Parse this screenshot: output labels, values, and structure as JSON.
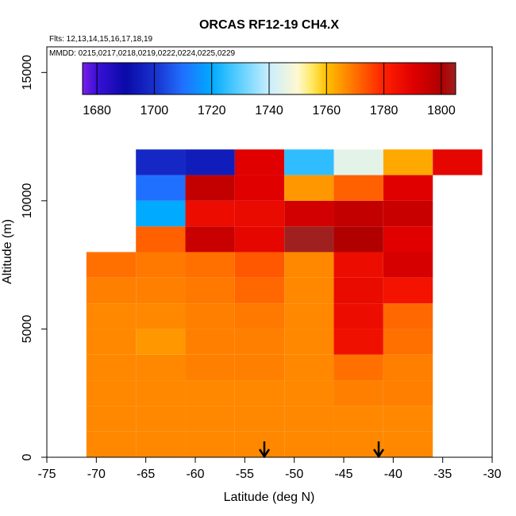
{
  "chart_data": {
    "type": "heatmap",
    "title": "ORCAS RF12-19 CH4.X",
    "xlabel": "Latitude (deg N)",
    "ylabel": "Altitude (m)",
    "xlim": [
      -75,
      -30
    ],
    "ylim": [
      0,
      16000
    ],
    "xticks": [
      -75,
      -70,
      -65,
      -60,
      -55,
      -50,
      -45,
      -40,
      -35,
      -30
    ],
    "yticks": [
      0,
      5000,
      10000,
      15000
    ],
    "note_flights": "Flts: 12,13,14,15,16,17,18,19",
    "note_dates": "MMDD: 0215,0217,0218,0219,0222,0224,0225,0229",
    "colorbar": {
      "min": 1675,
      "max": 1805,
      "ticks": [
        1680,
        1700,
        1720,
        1740,
        1760,
        1780,
        1800
      ],
      "stops": [
        {
          "v": 1675,
          "color": "#7a1fe6"
        },
        {
          "v": 1680,
          "color": "#3a10d8"
        },
        {
          "v": 1690,
          "color": "#0a0aa8"
        },
        {
          "v": 1700,
          "color": "#1830cc"
        },
        {
          "v": 1710,
          "color": "#2070ff"
        },
        {
          "v": 1720,
          "color": "#00aaff"
        },
        {
          "v": 1730,
          "color": "#60d0ff"
        },
        {
          "v": 1740,
          "color": "#c8eeff"
        },
        {
          "v": 1750,
          "color": "#fff8d0"
        },
        {
          "v": 1755,
          "color": "#ffe860"
        },
        {
          "v": 1760,
          "color": "#ffc000"
        },
        {
          "v": 1770,
          "color": "#ff7000"
        },
        {
          "v": 1780,
          "color": "#ff2000"
        },
        {
          "v": 1790,
          "color": "#e00000"
        },
        {
          "v": 1800,
          "color": "#b00000"
        },
        {
          "v": 1805,
          "color": "#a02020"
        }
      ]
    },
    "bin_width_deg": 5,
    "bin_height_m": 1000,
    "columns": [
      {
        "lat_min": -71,
        "cells": [
          [
            0,
            1000,
            1767
          ],
          [
            1000,
            2000,
            1767
          ],
          [
            2000,
            3000,
            1767
          ],
          [
            3000,
            4000,
            1767
          ],
          [
            4000,
            5000,
            1767
          ],
          [
            5000,
            6000,
            1767
          ],
          [
            6000,
            7000,
            1768
          ],
          [
            7000,
            8000,
            1770
          ]
        ]
      },
      {
        "lat_min": -66,
        "cells": [
          [
            0,
            1000,
            1767
          ],
          [
            1000,
            2000,
            1767
          ],
          [
            2000,
            3000,
            1767
          ],
          [
            3000,
            4000,
            1767
          ],
          [
            4000,
            5000,
            1765
          ],
          [
            5000,
            6000,
            1767
          ],
          [
            6000,
            7000,
            1768
          ],
          [
            7000,
            8000,
            1769
          ],
          [
            8000,
            9000,
            1772
          ],
          [
            9000,
            10000,
            1720
          ],
          [
            10000,
            11000,
            1710
          ],
          [
            11000,
            12000,
            1698
          ]
        ]
      },
      {
        "lat_min": -61,
        "cells": [
          [
            0,
            1000,
            1767
          ],
          [
            1000,
            2000,
            1767
          ],
          [
            2000,
            3000,
            1767
          ],
          [
            3000,
            4000,
            1768
          ],
          [
            4000,
            5000,
            1768
          ],
          [
            5000,
            6000,
            1768
          ],
          [
            6000,
            7000,
            1769
          ],
          [
            7000,
            8000,
            1770
          ],
          [
            8000,
            9000,
            1795
          ],
          [
            9000,
            10000,
            1786
          ],
          [
            10000,
            11000,
            1796
          ],
          [
            11000,
            12000,
            1695
          ]
        ]
      },
      {
        "lat_min": -56,
        "cells": [
          [
            0,
            1000,
            1767
          ],
          [
            1000,
            2000,
            1767
          ],
          [
            2000,
            3000,
            1767
          ],
          [
            3000,
            4000,
            1768
          ],
          [
            4000,
            5000,
            1768
          ],
          [
            5000,
            6000,
            1769
          ],
          [
            6000,
            7000,
            1771
          ],
          [
            7000,
            8000,
            1773
          ],
          [
            8000,
            9000,
            1788
          ],
          [
            9000,
            10000,
            1787
          ],
          [
            10000,
            11000,
            1790
          ],
          [
            11000,
            12000,
            1790
          ]
        ]
      },
      {
        "lat_min": -51,
        "cells": [
          [
            0,
            1000,
            1767
          ],
          [
            1000,
            2000,
            1767
          ],
          [
            2000,
            3000,
            1767
          ],
          [
            3000,
            4000,
            1767
          ],
          [
            4000,
            5000,
            1767
          ],
          [
            5000,
            6000,
            1767
          ],
          [
            6000,
            7000,
            1767
          ],
          [
            7000,
            8000,
            1767
          ],
          [
            8000,
            9000,
            1805
          ],
          [
            9000,
            10000,
            1793
          ],
          [
            10000,
            11000,
            1765
          ],
          [
            11000,
            12000,
            1725
          ]
        ]
      },
      {
        "lat_min": -46,
        "cells": [
          [
            0,
            1000,
            1767
          ],
          [
            1000,
            2000,
            1767
          ],
          [
            2000,
            3000,
            1768
          ],
          [
            3000,
            4000,
            1770
          ],
          [
            4000,
            5000,
            1785
          ],
          [
            5000,
            6000,
            1786
          ],
          [
            6000,
            7000,
            1787
          ],
          [
            7000,
            8000,
            1786
          ],
          [
            8000,
            9000,
            1800
          ],
          [
            9000,
            10000,
            1796
          ],
          [
            10000,
            11000,
            1772
          ],
          [
            11000,
            12000,
            1745
          ]
        ]
      },
      {
        "lat_min": -41,
        "cells": [
          [
            0,
            1000,
            1767
          ],
          [
            1000,
            2000,
            1767
          ],
          [
            2000,
            3000,
            1768
          ],
          [
            3000,
            4000,
            1768
          ],
          [
            4000,
            5000,
            1770
          ],
          [
            5000,
            6000,
            1771
          ],
          [
            6000,
            7000,
            1784
          ],
          [
            7000,
            8000,
            1792
          ],
          [
            8000,
            9000,
            1790
          ],
          [
            9000,
            10000,
            1795
          ],
          [
            10000,
            11000,
            1790
          ],
          [
            11000,
            12000,
            1763
          ]
        ]
      },
      {
        "lat_min": -36,
        "cells": [
          [
            11000,
            12000,
            1788
          ]
        ]
      }
    ]
  }
}
